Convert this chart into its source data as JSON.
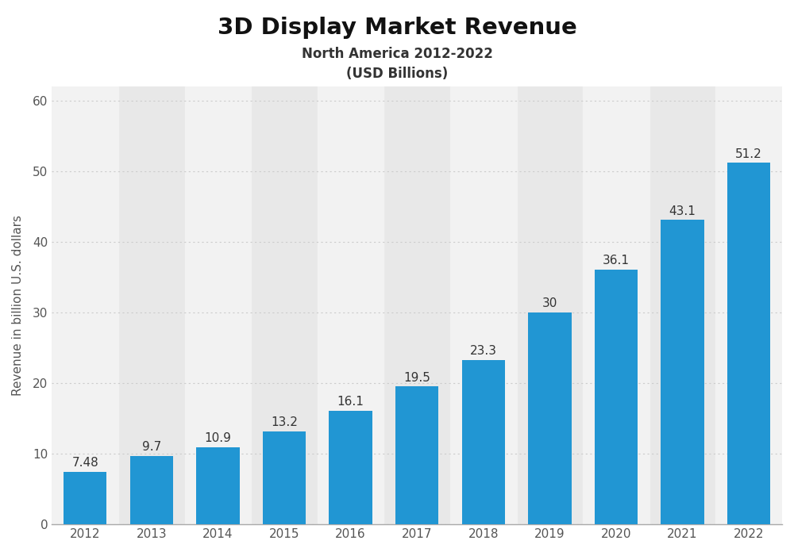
{
  "title": "3D Display Market Revenue",
  "subtitle1": "North America 2012-2022",
  "subtitle2": "(USD Billions)",
  "years": [
    "2012",
    "2013",
    "2014",
    "2015",
    "2016",
    "2017",
    "2018",
    "2019",
    "2020",
    "2021",
    "2022"
  ],
  "values": [
    7.48,
    9.7,
    10.9,
    13.2,
    16.1,
    19.5,
    23.3,
    30,
    36.1,
    43.1,
    51.2
  ],
  "bar_color": "#2196d3",
  "background_color": "#ffffff",
  "plot_bg_color": "#e8e8e8",
  "white_band_color": "#f2f2f2",
  "ylabel": "Revenue in billion U.S. dollars",
  "ylim": [
    0,
    62
  ],
  "yticks": [
    0,
    10,
    20,
    30,
    40,
    50,
    60
  ],
  "grid_color": "#cccccc",
  "title_fontsize": 21,
  "subtitle_fontsize": 12,
  "tick_fontsize": 11,
  "bar_label_fontsize": 11,
  "ylabel_fontsize": 11
}
